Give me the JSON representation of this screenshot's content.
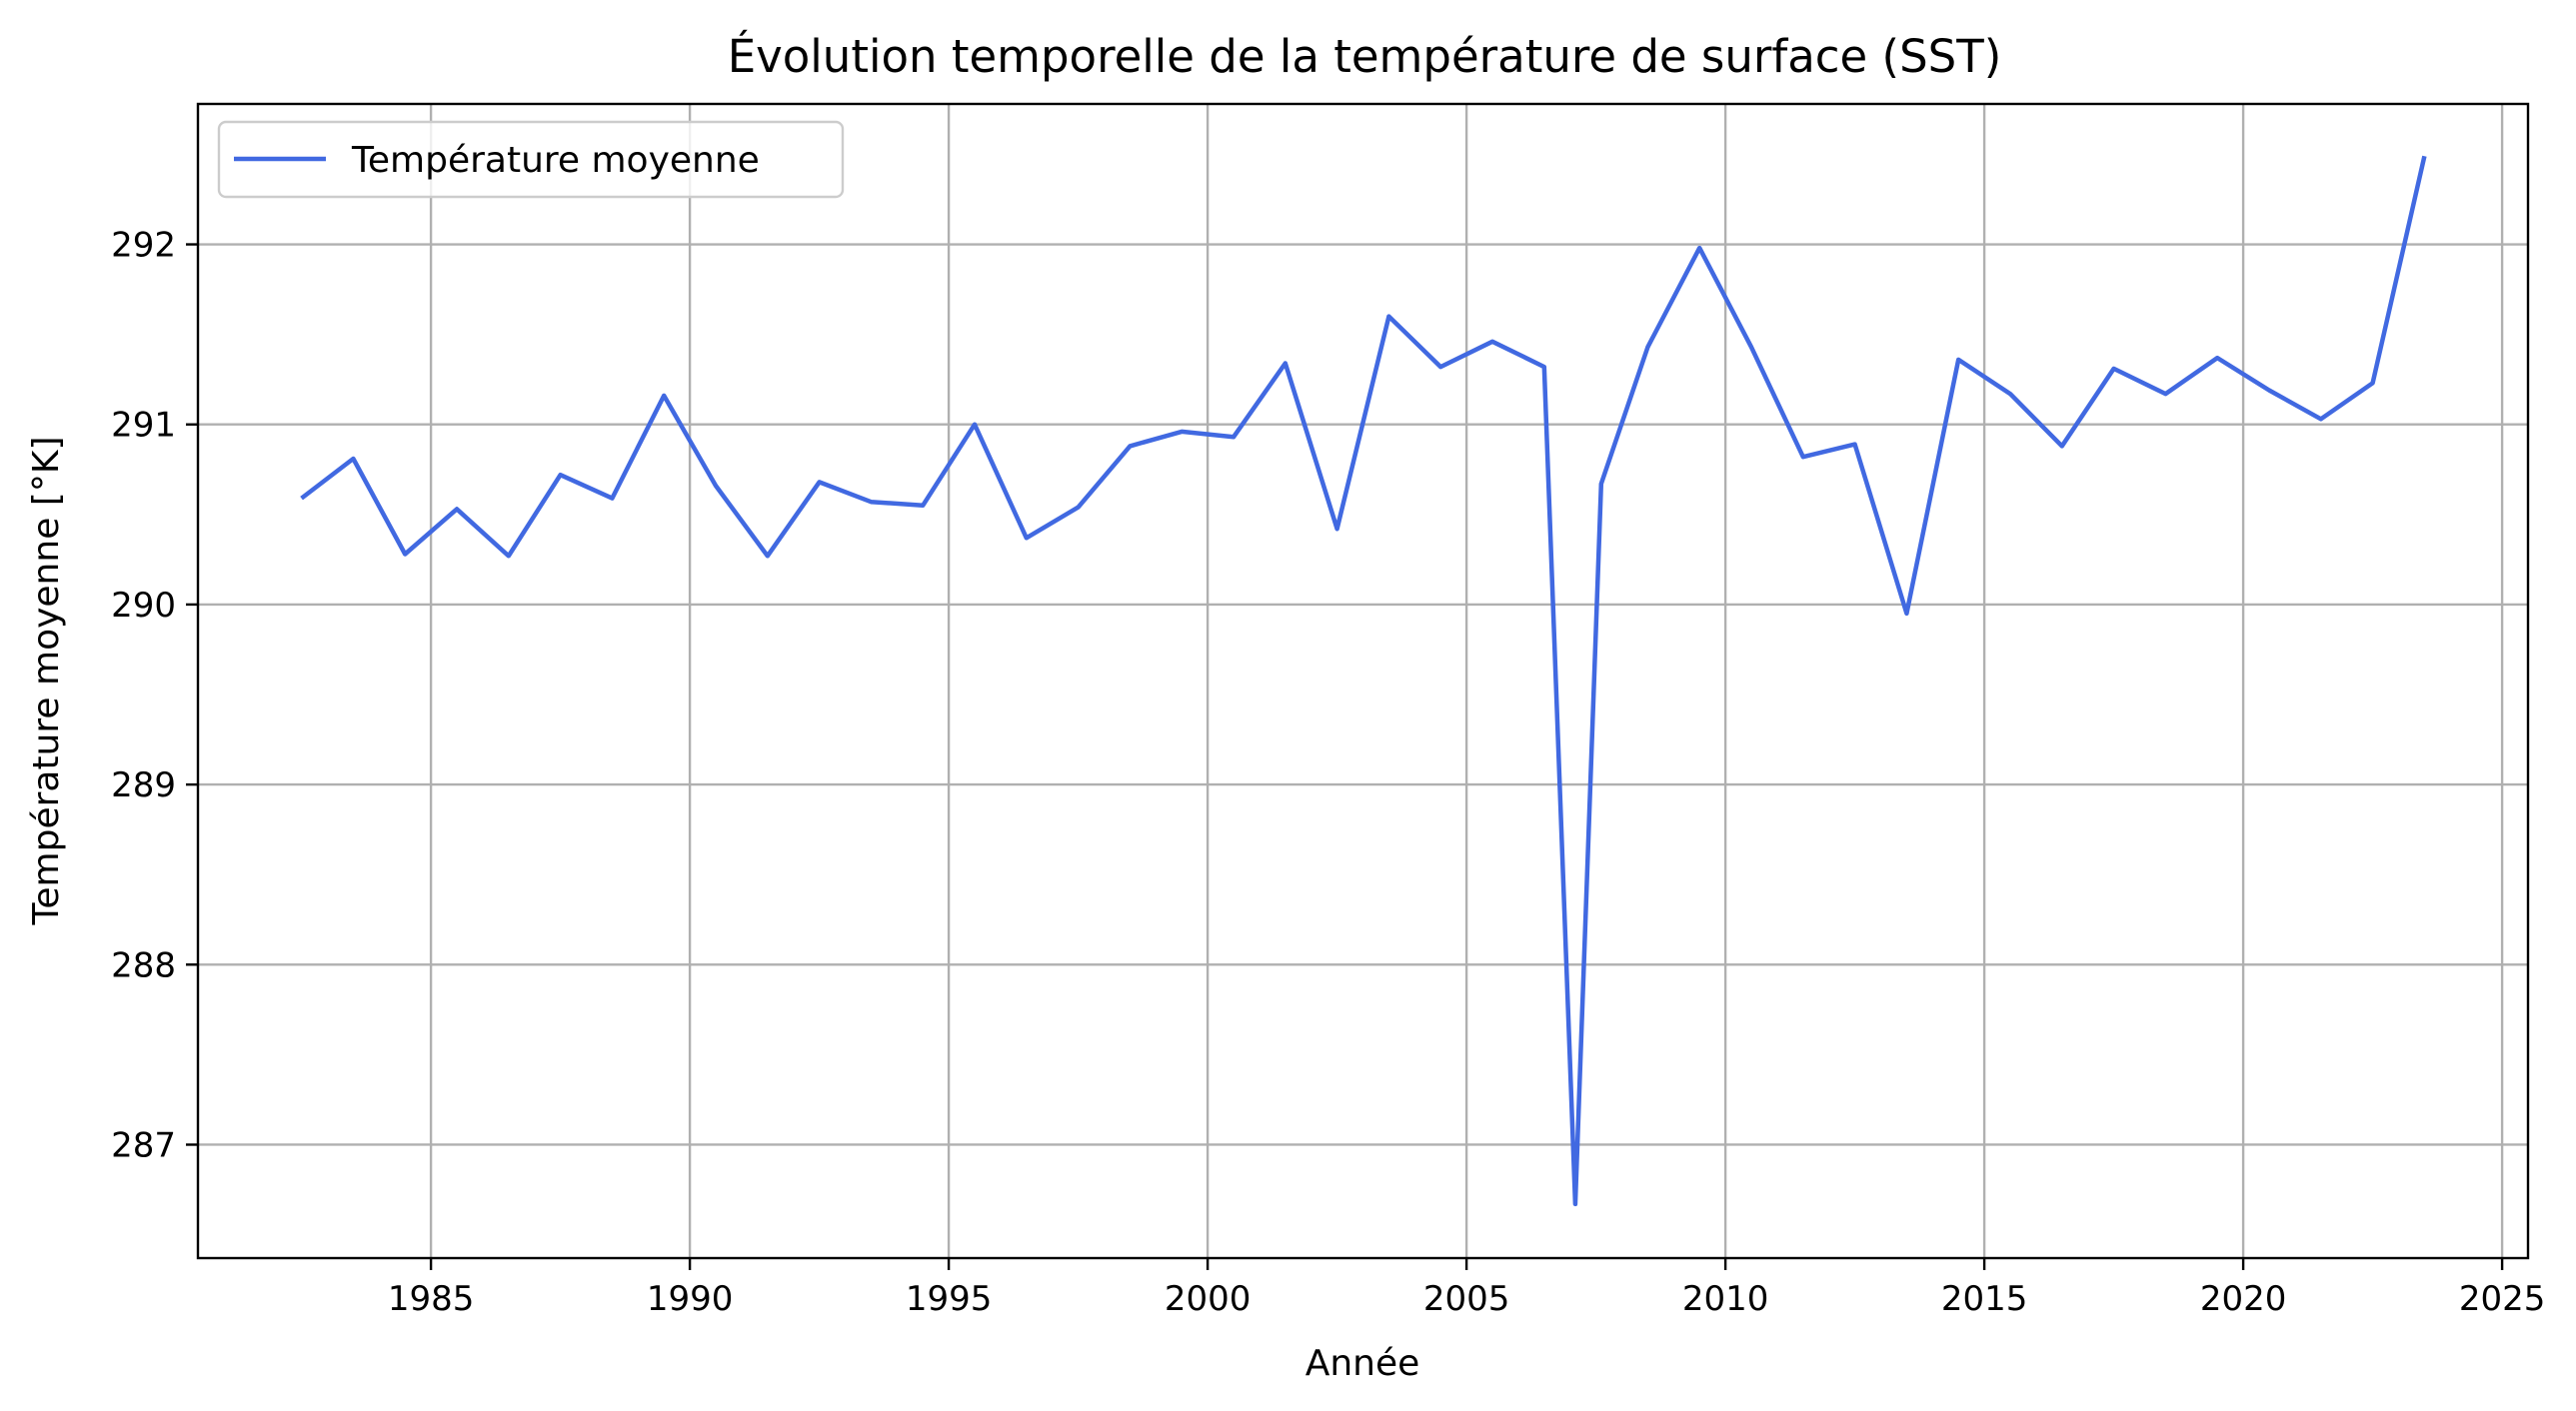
{
  "chart_data": {
    "type": "line",
    "title": "Évolution temporelle de la température de surface (SST)",
    "xlabel": "Année",
    "ylabel": "Température moyenne [°K]",
    "xlim": [
      1980.5,
      2025.5
    ],
    "ylim": [
      286.37,
      292.78
    ],
    "xticks": [
      1985,
      1990,
      1995,
      2000,
      2005,
      2010,
      2015,
      2020,
      2025
    ],
    "yticks": [
      287,
      288,
      289,
      290,
      291,
      292
    ],
    "grid": true,
    "legend_position": "upper-left",
    "series_color": "#4169e1",
    "series": [
      {
        "name": "Température moyenne",
        "x": [
          1982.5,
          1983.5,
          1984.5,
          1985.5,
          1986.5,
          1987.5,
          1988.5,
          1989.5,
          1990.5,
          1991.5,
          1992.5,
          1993.5,
          1994.5,
          1995.5,
          1996.5,
          1997.5,
          1998.5,
          1999.5,
          2000.5,
          2001.5,
          2002.5,
          2003.5,
          2004.5,
          2005.5,
          2006.5,
          2007.1,
          2007.6,
          2008.5,
          2009.5,
          2010.5,
          2011.5,
          2012.5,
          2013.5,
          2014.5,
          2015.5,
          2016.5,
          2017.5,
          2018.5,
          2019.5,
          2020.5,
          2021.5,
          2022.5,
          2023.5
        ],
        "values": [
          290.59,
          290.81,
          290.28,
          290.53,
          290.27,
          290.72,
          290.59,
          291.16,
          290.66,
          290.27,
          290.68,
          290.57,
          290.55,
          291.0,
          290.37,
          290.54,
          290.88,
          290.96,
          290.93,
          291.34,
          290.42,
          291.6,
          291.32,
          291.46,
          291.32,
          286.67,
          290.67,
          291.43,
          291.98,
          291.43,
          290.82,
          290.89,
          289.95,
          291.36,
          291.17,
          290.88,
          291.31,
          291.17,
          291.37,
          291.19,
          291.03,
          291.23,
          292.49
        ]
      }
    ]
  }
}
